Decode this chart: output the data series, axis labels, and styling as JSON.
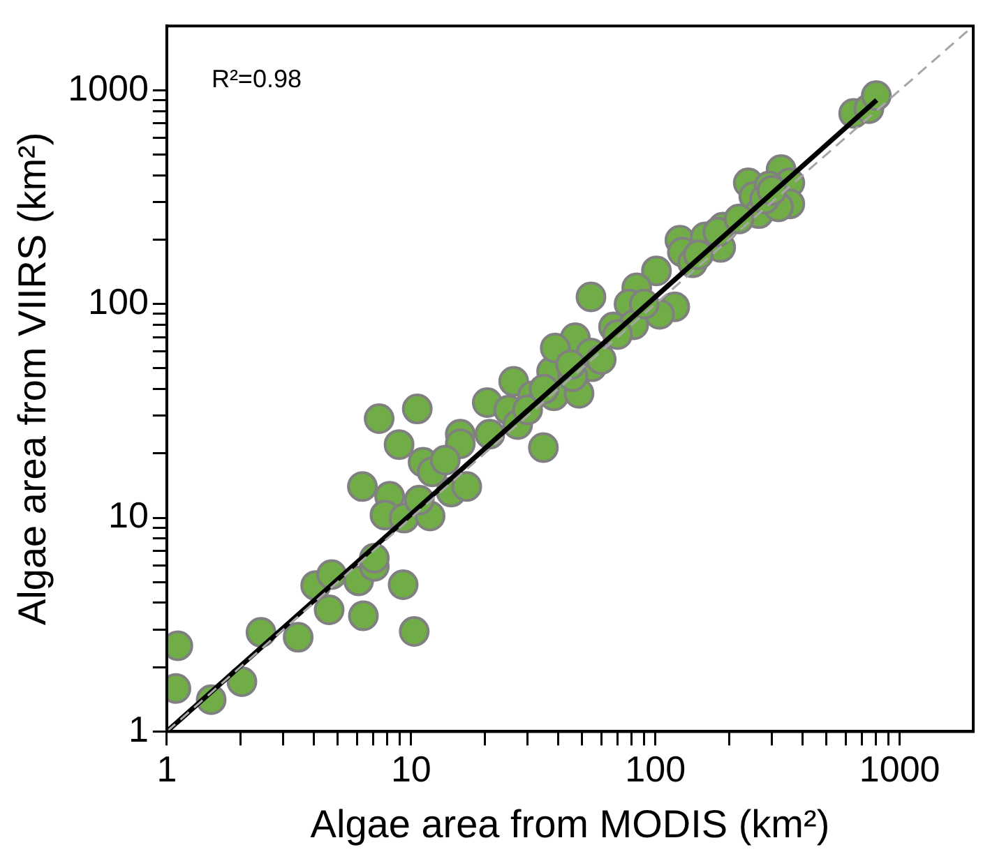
{
  "chart_data": {
    "type": "scatter",
    "xlabel": "Algae area from MODIS (km²)",
    "ylabel": "Algae area from VIIRS (km²)",
    "log": "xy",
    "grid": false,
    "legend": false,
    "marker": "circle",
    "xlim": [
      1,
      2000
    ],
    "ylim": [
      1,
      2000
    ],
    "xticks": [
      1,
      {
        "value": 2,
        "label": null
      },
      {
        "value": 3,
        "label": null
      },
      {
        "value": 4,
        "label": null
      },
      {
        "value": 5,
        "label": null
      },
      {
        "value": 6,
        "label": null
      },
      {
        "value": 7,
        "label": null
      },
      {
        "value": 8,
        "label": null
      },
      {
        "value": 9,
        "label": null
      },
      10,
      {
        "value": 20,
        "label": null
      },
      {
        "value": 30,
        "label": null
      },
      {
        "value": 40,
        "label": null
      },
      {
        "value": 50,
        "label": null
      },
      {
        "value": 60,
        "label": null
      },
      {
        "value": 70,
        "label": null
      },
      {
        "value": 80,
        "label": null
      },
      {
        "value": 90,
        "label": null
      },
      100,
      {
        "value": 200,
        "label": null
      },
      {
        "value": 300,
        "label": null
      },
      {
        "value": 400,
        "label": null
      },
      {
        "value": 500,
        "label": null
      },
      {
        "value": 600,
        "label": null
      },
      {
        "value": 700,
        "label": null
      },
      {
        "value": 800,
        "label": null
      },
      {
        "value": 900,
        "label": null
      },
      1000
    ],
    "yticks": [
      1,
      {
        "value": 2,
        "label": null
      },
      {
        "value": 3,
        "label": null
      },
      {
        "value": 4,
        "label": null
      },
      {
        "value": 5,
        "label": null
      },
      {
        "value": 6,
        "label": null
      },
      {
        "value": 7,
        "label": null
      },
      {
        "value": 8,
        "label": null
      },
      {
        "value": 9,
        "label": null
      },
      10,
      {
        "value": 20,
        "label": null
      },
      {
        "value": 30,
        "label": null
      },
      {
        "value": 40,
        "label": null
      },
      {
        "value": 50,
        "label": null
      },
      {
        "value": 60,
        "label": null
      },
      {
        "value": 70,
        "label": null
      },
      {
        "value": 80,
        "label": null
      },
      {
        "value": 90,
        "label": null
      },
      100,
      {
        "value": 200,
        "label": null
      },
      {
        "value": 300,
        "label": null
      },
      {
        "value": 400,
        "label": null
      },
      {
        "value": 500,
        "label": null
      },
      {
        "value": 600,
        "label": null
      },
      {
        "value": 700,
        "label": null
      },
      {
        "value": 800,
        "label": null
      },
      {
        "value": 900,
        "label": null
      },
      1000
    ],
    "annotations": [
      "R²=0.98"
    ],
    "series": [
      {
        "color": "#70ad47",
        "x": [
          1.11,
          1.09,
          1.52,
          2.03,
          2.43,
          3.45,
          4.07,
          4.73,
          4.62,
          6.1,
          6.38,
          7.07,
          7.07,
          9.28,
          10.3,
          6.32,
          7.4,
          10.6,
          8.93,
          8.17,
          7.82,
          9.36,
          11.96,
          10.8,
          11.2,
          12.2,
          14.6,
          16.9,
          15.9,
          15.9,
          13.8,
          20.5,
          25.1,
          27.3,
          21,
          34.8,
          26.3,
          31.4,
          38.4,
          48.7,
          55,
          37.6,
          54.5,
          101,
          120,
          104,
          83.9,
          78,
          67.4,
          81.5,
          47,
          38.9,
          54.5,
          45.9,
          126,
          129,
          142,
          160,
          185,
          189,
          180,
          240,
          253,
          265,
          327,
          355,
          355,
          319,
          292,
          648,
          748,
          802,
          60,
          70,
          30,
          35,
          45,
          90,
          150,
          220,
          280,
          300
        ],
        "values": [
          2.52,
          1.59,
          1.41,
          1.71,
          2.91,
          2.76,
          4.82,
          5.42,
          3.71,
          5.07,
          3.48,
          5.92,
          6.47,
          4.86,
          2.94,
          14,
          29.1,
          32.3,
          22,
          12.6,
          10.3,
          9.96,
          10.2,
          12.1,
          18.2,
          16.4,
          13.2,
          14,
          24.6,
          22.2,
          18.6,
          34.6,
          31.9,
          27.3,
          24.6,
          21.3,
          43.5,
          37.2,
          37.2,
          38.2,
          50.9,
          48.4,
          108,
          143,
          97,
          89.5,
          119,
          100,
          78.2,
          80,
          69.6,
          62.3,
          59,
          45.8,
          199,
          175,
          156,
          206,
          184,
          229,
          217,
          369,
          319,
          265,
          426,
          369,
          294,
          285,
          357,
          780,
          821,
          945,
          55,
          72,
          32,
          40,
          52,
          100,
          170,
          250,
          310,
          340
        ]
      },
      {
        "type": "line",
        "color": "#000000",
        "line_style": "solid",
        "marker": "none",
        "x": [
          1,
          805
        ],
        "values": [
          1,
          900
        ]
      },
      {
        "type": "line",
        "color": "#a6a6a6",
        "line_style": "dashed",
        "marker": "none",
        "x": [
          1,
          2000
        ],
        "values": [
          1,
          2000
        ]
      }
    ]
  }
}
